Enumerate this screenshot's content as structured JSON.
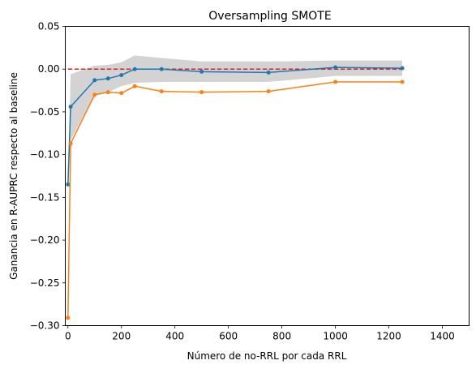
{
  "chart_data": {
    "type": "line",
    "title": "Oversampling SMOTE",
    "xlabel": "Número de no-RRL por cada RRL",
    "ylabel": "Ganancia en R-AUPRC respecto al baseline",
    "xlim": [
      -10,
      1500
    ],
    "ylim": [
      -0.3,
      0.05
    ],
    "xticks": [
      0,
      200,
      400,
      600,
      800,
      1000,
      1200,
      1400
    ],
    "yticks": [
      -0.3,
      -0.25,
      -0.2,
      -0.15,
      -0.1,
      -0.05,
      0.0,
      0.05
    ],
    "ytick_labels": [
      "−0.30",
      "−0.25",
      "−0.20",
      "−0.15",
      "−0.10",
      "−0.05",
      "0.00",
      "0.05"
    ],
    "grid": false,
    "baseline": {
      "y": 0.0,
      "color": "#d62728",
      "style": "dashed",
      "x_range": [
        0,
        1250
      ]
    },
    "band": {
      "color": "#d3d3d3",
      "x": [
        0,
        10,
        100,
        150,
        200,
        250,
        350,
        500,
        750,
        1000,
        1250
      ],
      "upper": [
        -0.135,
        -0.006,
        0.004,
        0.005,
        0.008,
        0.016,
        0.013,
        0.009,
        0.009,
        0.01,
        0.01
      ],
      "lower": [
        -0.135,
        -0.083,
        -0.03,
        -0.027,
        -0.02,
        -0.016,
        -0.015,
        -0.015,
        -0.015,
        -0.008,
        -0.008
      ]
    },
    "series": [
      {
        "color": "#1f77b4",
        "x": [
          0,
          10,
          100,
          150,
          200,
          250,
          350,
          500,
          750,
          1000,
          1250
        ],
        "y": [
          -0.135,
          -0.044,
          -0.013,
          -0.011,
          -0.007,
          0.0,
          0.0,
          -0.003,
          -0.004,
          0.002,
          0.001
        ]
      },
      {
        "color": "#ff7f0e",
        "x": [
          0,
          10,
          100,
          150,
          200,
          250,
          350,
          500,
          750,
          1000,
          1250
        ],
        "y": [
          -0.291,
          -0.087,
          -0.03,
          -0.027,
          -0.028,
          -0.02,
          -0.026,
          -0.027,
          -0.026,
          -0.015,
          -0.015
        ]
      }
    ]
  }
}
